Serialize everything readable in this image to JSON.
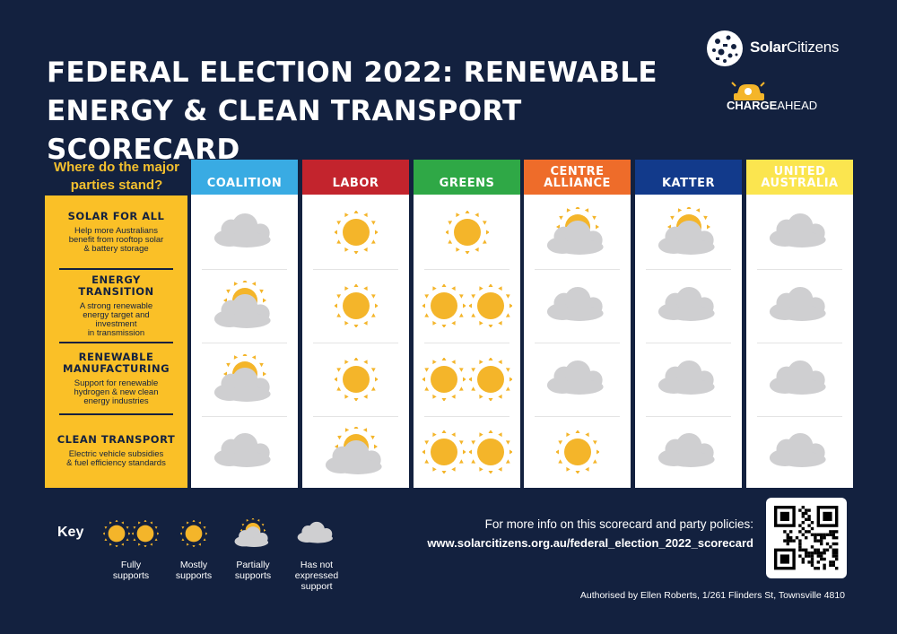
{
  "title_line1": "FEDERAL ELECTION 2022: RENEWABLE",
  "title_line2": "ENERGY & CLEAN TRANSPORT SCORECARD",
  "logos": {
    "solar_bold": "Solar",
    "solar_rest": "Citizens",
    "charge_bold": "CHARGE",
    "charge_rest": "AHEAD"
  },
  "question_line1": "Where do the major",
  "question_line2": "parties stand?",
  "categories": [
    {
      "heading": [
        "SOLAR FOR ALL"
      ],
      "description": [
        "Help more Australians",
        "benefit from rooftop solar",
        "& battery storage"
      ]
    },
    {
      "heading": [
        "ENERGY",
        "TRANSITION"
      ],
      "description": [
        "A strong renewable",
        "energy target and",
        "investment",
        "in transmission"
      ]
    },
    {
      "heading": [
        "RENEWABLE",
        "MANUFACTURING"
      ],
      "description": [
        "Support for renewable",
        "hydrogen & new clean",
        "energy industries"
      ]
    },
    {
      "heading": [
        "CLEAN TRANSPORT"
      ],
      "description": [
        "Electric vehicle subsidies",
        "& fuel efficiency standards"
      ]
    }
  ],
  "parties": [
    {
      "name": [
        "COALITION"
      ],
      "color": "#39abe3",
      "text_color": "#ffffff",
      "ratings": [
        "none",
        "partial",
        "partial",
        "none"
      ]
    },
    {
      "name": [
        "LABOR"
      ],
      "color": "#c3242d",
      "text_color": "#ffffff",
      "ratings": [
        "mostly",
        "mostly",
        "mostly",
        "partial"
      ]
    },
    {
      "name": [
        "GREENS"
      ],
      "color": "#2fa846",
      "text_color": "#ffffff",
      "ratings": [
        "mostly",
        "fully",
        "fully",
        "fully"
      ]
    },
    {
      "name": [
        "CENTRE",
        "ALLIANCE"
      ],
      "color": "#ee6c2a",
      "text_color": "#ffffff",
      "ratings": [
        "partial",
        "none",
        "none",
        "mostly"
      ]
    },
    {
      "name": [
        "KATTER"
      ],
      "color": "#123a8b",
      "text_color": "#ffffff",
      "ratings": [
        "partial",
        "none",
        "none",
        "none"
      ]
    },
    {
      "name": [
        "UNITED",
        "AUSTRALIA"
      ],
      "color": "#fbe54f",
      "text_color": "#ffffff",
      "ratings": [
        "none",
        "none",
        "none",
        "none"
      ]
    }
  ],
  "key": {
    "title": "Key",
    "items": [
      {
        "rating": "fully",
        "label": [
          "Fully",
          "supports"
        ]
      },
      {
        "rating": "mostly",
        "label": [
          "Mostly",
          "supports"
        ]
      },
      {
        "rating": "partial",
        "label": [
          "Partially",
          "supports"
        ]
      },
      {
        "rating": "none",
        "label": [
          "Has not",
          "expressed",
          "support"
        ]
      }
    ]
  },
  "info_text": "For more info on this scorecard and party policies:",
  "info_url": "www.solarcitizens.org.au/federal_election_2022_scorecard",
  "authorised": "Authorised by Ellen Roberts, 1/261 Flinders St, Townsville 4810",
  "colors": {
    "background": "#13213f",
    "accent_yellow": "#fac027",
    "sun": "#f4b52a",
    "cloud": "#cfcfd1"
  }
}
